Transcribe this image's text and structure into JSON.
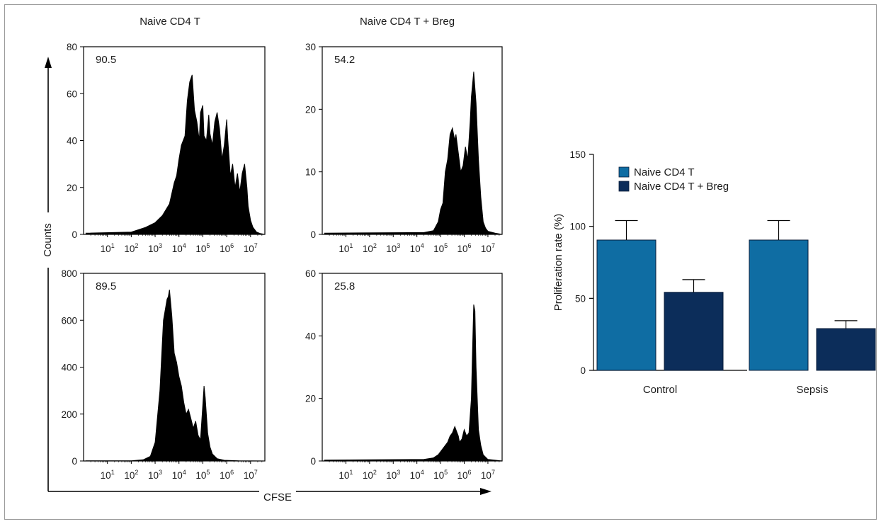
{
  "flow_panel": {
    "col_titles": [
      "Naive CD4 T",
      "Naive CD4 T + Breg"
    ],
    "counts_label": "Counts",
    "cfse_label": "CFSE"
  },
  "chart_data": [
    {
      "type": "area",
      "position": "top-left",
      "title": "Naive CD4 T",
      "ylabel": "Counts",
      "xscale": "log",
      "xticks": [
        "10^1",
        "10^2",
        "10^3",
        "10^4",
        "10^5",
        "10^6",
        "10^7"
      ],
      "ylim": [
        0,
        80
      ],
      "yticks": [
        0,
        20,
        40,
        60,
        80
      ],
      "annotation": "90.5",
      "x_log10": [
        0.1,
        2.0,
        2.6,
        3.0,
        3.3,
        3.6,
        3.8,
        3.9,
        4.0,
        4.1,
        4.25,
        4.35,
        4.45,
        4.55,
        4.65,
        4.75,
        4.85,
        4.9,
        5.0,
        5.05,
        5.15,
        5.25,
        5.3,
        5.4,
        5.5,
        5.6,
        5.7,
        5.8,
        5.9,
        6.0,
        6.05,
        6.15,
        6.25,
        6.35,
        6.45,
        6.55,
        6.65,
        6.75,
        6.85,
        6.9,
        7.0,
        7.1,
        7.25,
        7.4,
        7.6
      ],
      "y": [
        0.5,
        1,
        3,
        5,
        8,
        13,
        22,
        25,
        32,
        38,
        42,
        57,
        65,
        68,
        53,
        48,
        40,
        52,
        55,
        42,
        40,
        51,
        43,
        38,
        48,
        52,
        45,
        32,
        38,
        49,
        40,
        25,
        30,
        20,
        26,
        18,
        26,
        30,
        20,
        12,
        6,
        3,
        1,
        0.4,
        0
      ]
    },
    {
      "type": "area",
      "position": "top-right",
      "title": "Naive CD4 T + Breg",
      "xscale": "log",
      "xticks": [
        "10^1",
        "10^2",
        "10^3",
        "10^4",
        "10^5",
        "10^6",
        "10^7"
      ],
      "ylim": [
        0,
        30
      ],
      "yticks": [
        0,
        10,
        20,
        30
      ],
      "annotation": "54.2",
      "x_log10": [
        0.1,
        4.3,
        4.7,
        4.9,
        5.0,
        5.1,
        5.2,
        5.3,
        5.4,
        5.5,
        5.6,
        5.65,
        5.75,
        5.85,
        5.95,
        6.05,
        6.15,
        6.25,
        6.3,
        6.4,
        6.5,
        6.6,
        6.7,
        6.8,
        6.9,
        7.0,
        7.3,
        7.6
      ],
      "y": [
        0.2,
        0.3,
        0.6,
        2,
        4,
        5,
        10,
        12,
        16,
        17,
        15,
        16,
        13,
        10,
        11,
        14,
        12,
        18,
        22,
        26,
        21,
        12,
        6,
        2,
        1,
        0.5,
        0.2,
        0
      ]
    },
    {
      "type": "area",
      "position": "bottom-left",
      "xscale": "log",
      "xticks": [
        "10^1",
        "10^2",
        "10^3",
        "10^4",
        "10^5",
        "10^6",
        "10^7"
      ],
      "ylim": [
        0,
        800
      ],
      "yticks": [
        0,
        200,
        400,
        600,
        800
      ],
      "annotation": "89.5",
      "x_log10": [
        0.1,
        2.0,
        2.5,
        2.8,
        3.0,
        3.2,
        3.35,
        3.5,
        3.55,
        3.6,
        3.7,
        3.8,
        3.9,
        4.0,
        4.1,
        4.2,
        4.3,
        4.4,
        4.5,
        4.6,
        4.7,
        4.8,
        4.9,
        5.0,
        5.05,
        5.1,
        5.2,
        5.3,
        5.4,
        5.6,
        5.9,
        6.5,
        7.6
      ],
      "y": [
        0.5,
        1,
        5,
        20,
        80,
        300,
        600,
        690,
        700,
        730,
        620,
        460,
        420,
        360,
        320,
        250,
        200,
        220,
        180,
        140,
        170,
        110,
        90,
        240,
        320,
        270,
        120,
        60,
        30,
        10,
        3,
        1,
        0
      ]
    },
    {
      "type": "area",
      "position": "bottom-right",
      "xscale": "log",
      "xticks": [
        "10^1",
        "10^2",
        "10^3",
        "10^4",
        "10^5",
        "10^6",
        "10^7"
      ],
      "ylim": [
        0,
        60
      ],
      "yticks": [
        0,
        20,
        40,
        60
      ],
      "annotation": "25.8",
      "x_log10": [
        0.1,
        4.3,
        4.7,
        4.9,
        5.0,
        5.2,
        5.3,
        5.4,
        5.5,
        5.6,
        5.7,
        5.75,
        5.8,
        5.9,
        6.0,
        6.1,
        6.2,
        6.3,
        6.35,
        6.4,
        6.45,
        6.5,
        6.55,
        6.6,
        6.7,
        6.8,
        7.0,
        7.6
      ],
      "y": [
        0.3,
        0.5,
        1,
        2,
        3,
        5,
        6,
        8,
        9,
        11,
        9,
        8,
        6,
        7,
        10,
        8,
        9,
        20,
        35,
        50,
        48,
        30,
        20,
        10,
        5,
        2,
        0.5,
        0
      ]
    },
    {
      "type": "bar",
      "position": "right",
      "categories": [
        "Control",
        "Sepsis"
      ],
      "series": [
        {
          "name": "Naive CD4 T",
          "values": [
            90.5,
            90.5
          ],
          "errors": [
            13.5,
            13.5
          ],
          "color": "#0f6da3"
        },
        {
          "name": "Naive CD4 T + Breg",
          "values": [
            54.2,
            29
          ],
          "errors": [
            8.8,
            5.5
          ],
          "color": "#0c2d5a"
        }
      ],
      "ylabel": "Proliferation rate (%)",
      "ylim": [
        0,
        150
      ],
      "yticks": [
        0,
        50,
        100,
        150
      ],
      "legend": "top-left"
    }
  ]
}
